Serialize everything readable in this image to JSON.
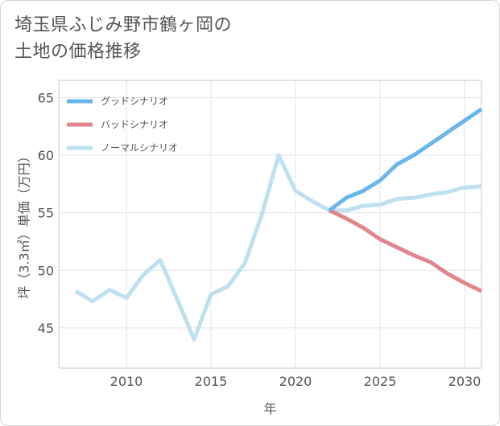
{
  "title": {
    "line1": "埼玉県ふじみ野市鶴ヶ岡の",
    "line2": "土地の価格推移"
  },
  "chart_data": {
    "type": "line",
    "xlabel": "年",
    "ylabel": "坪（3.3㎡）単価（万円）",
    "xlim": [
      2006,
      2031
    ],
    "ylim": [
      41.5,
      66.5
    ],
    "xticks": [
      2010,
      2015,
      2020,
      2025,
      2030
    ],
    "yticks": [
      45,
      50,
      55,
      60,
      65
    ],
    "grid": true,
    "legend_position": "top-left",
    "series": [
      {
        "name": "グッドシナリオ",
        "color": "#6cb6ea",
        "x": [
          2022,
          2023,
          2024,
          2025,
          2026,
          2027,
          2028,
          2029,
          2030,
          2031
        ],
        "y": [
          55.2,
          56.3,
          56.9,
          57.8,
          59.2,
          60.0,
          61.0,
          62.0,
          63.0,
          64.0
        ]
      },
      {
        "name": "バッドシナリオ",
        "color": "#e0868e",
        "x": [
          2022,
          2023,
          2024,
          2025,
          2026,
          2027,
          2028,
          2029,
          2030,
          2031
        ],
        "y": [
          55.2,
          54.5,
          53.7,
          52.7,
          52.0,
          51.3,
          50.7,
          49.7,
          48.9,
          48.2
        ]
      },
      {
        "name": "ノーマルシナリオ",
        "color": "#bee0ef",
        "x": [
          2007,
          2008,
          2009,
          2010,
          2011,
          2012,
          2013,
          2014,
          2015,
          2016,
          2017,
          2018,
          2019,
          2020,
          2021,
          2022,
          2023,
          2024,
          2025,
          2026,
          2027,
          2028,
          2029,
          2030,
          2031
        ],
        "y": [
          48.2,
          47.3,
          48.3,
          47.6,
          49.6,
          50.9,
          47.5,
          44.0,
          47.9,
          48.6,
          50.6,
          54.8,
          60.0,
          56.9,
          56.0,
          55.2,
          55.2,
          55.6,
          55.7,
          56.2,
          56.3,
          56.6,
          56.8,
          57.2,
          57.3
        ]
      }
    ]
  }
}
